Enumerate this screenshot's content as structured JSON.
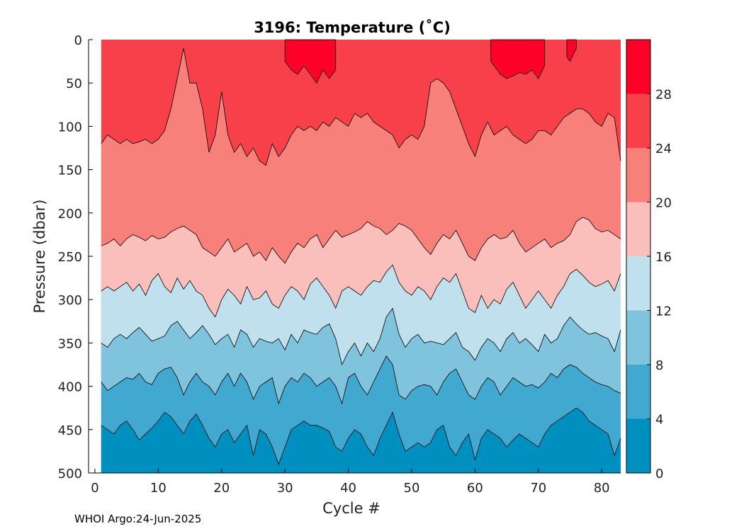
{
  "chart_data": {
    "type": "heatmap",
    "subtype": "filled-contour",
    "title": "3196:  Temperature (˚C)",
    "xlabel": "Cycle #",
    "ylabel": "Pressure (dbar)",
    "xlim": [
      -1,
      83
    ],
    "ylim": [
      500,
      0
    ],
    "y_axis_reversed": true,
    "xticks": [
      0,
      10,
      20,
      30,
      40,
      50,
      60,
      70,
      80
    ],
    "yticks": [
      0,
      50,
      100,
      150,
      200,
      250,
      300,
      350,
      400,
      450,
      500
    ],
    "colorbar": {
      "ticks": [
        0,
        4,
        8,
        12,
        16,
        20,
        24,
        28
      ],
      "range": [
        0,
        32
      ],
      "levels": [
        {
          "min": 0,
          "max": 4,
          "color": "#0090bf"
        },
        {
          "min": 4,
          "max": 8,
          "color": "#41a9cf"
        },
        {
          "min": 8,
          "max": 12,
          "color": "#80c3dd"
        },
        {
          "min": 12,
          "max": 16,
          "color": "#c0e0ed"
        },
        {
          "min": 16,
          "max": 20,
          "color": "#fbbfbb"
        },
        {
          "min": 20,
          "max": 24,
          "color": "#f7807b"
        },
        {
          "min": 24,
          "max": 28,
          "color": "#f7404a"
        },
        {
          "min": 28,
          "max": 32,
          "color": "#fe0128"
        }
      ]
    },
    "contours": [
      {
        "level": 28,
        "segments": [
          {
            "x": [
              30.0,
              31.0,
              32.0,
              33.0,
              34.0,
              35.0,
              36.0,
              37.0,
              38.0
            ],
            "depth": [
              25,
              35,
              40,
              30,
              40,
              50,
              35,
              45,
              35
            ]
          },
          {
            "x": [
              62.5,
              64.0,
              65.0,
              66.0,
              67.0,
              68.0,
              69.0,
              70.0,
              71.0
            ],
            "depth": [
              25,
              40,
              45,
              42,
              38,
              40,
              35,
              45,
              30
            ]
          },
          {
            "x": [
              74.5,
              75.0,
              76.0
            ],
            "depth": [
              20,
              25,
              10
            ]
          }
        ]
      },
      {
        "level": 24,
        "x": [
          1,
          2,
          3,
          4,
          5,
          6,
          7,
          8,
          9,
          10,
          11,
          12,
          13,
          14,
          15,
          16,
          17,
          18,
          19,
          20,
          21,
          22,
          23,
          24,
          25,
          26,
          27,
          28,
          29,
          30,
          31,
          32,
          33,
          34,
          35,
          36,
          37,
          38,
          39,
          40,
          41,
          42,
          43,
          44,
          45,
          46,
          47,
          48,
          49,
          50,
          51,
          52,
          53,
          54,
          55,
          56,
          57,
          58,
          59,
          60,
          61,
          62,
          63,
          64,
          65,
          66,
          67,
          68,
          69,
          70,
          71,
          72,
          73,
          74,
          75,
          76,
          77,
          78,
          79,
          80,
          81,
          82,
          83
        ],
        "depth": [
          120,
          110,
          115,
          120,
          115,
          120,
          118,
          115,
          120,
          115,
          105,
          80,
          45,
          10,
          50,
          50,
          80,
          130,
          110,
          60,
          110,
          130,
          120,
          135,
          125,
          140,
          145,
          120,
          135,
          125,
          110,
          100,
          105,
          100,
          105,
          95,
          100,
          90,
          95,
          100,
          85,
          90,
          85,
          95,
          100,
          105,
          110,
          125,
          115,
          110,
          115,
          100,
          50,
          45,
          50,
          60,
          80,
          100,
          120,
          135,
          110,
          95,
          110,
          105,
          100,
          110,
          115,
          120,
          115,
          105,
          105,
          110,
          100,
          90,
          85,
          80,
          80,
          85,
          95,
          100,
          85,
          90,
          140
        ]
      },
      {
        "level": 20,
        "x": [
          1,
          2,
          3,
          4,
          5,
          6,
          7,
          8,
          9,
          10,
          11,
          12,
          13,
          14,
          15,
          16,
          17,
          18,
          19,
          20,
          21,
          22,
          23,
          24,
          25,
          26,
          27,
          28,
          29,
          30,
          31,
          32,
          33,
          34,
          35,
          36,
          37,
          38,
          39,
          40,
          41,
          42,
          43,
          44,
          45,
          46,
          47,
          48,
          49,
          50,
          51,
          52,
          53,
          54,
          55,
          56,
          57,
          58,
          59,
          60,
          61,
          62,
          63,
          64,
          65,
          66,
          67,
          68,
          69,
          70,
          71,
          72,
          73,
          74,
          75,
          76,
          77,
          78,
          79,
          80,
          81,
          82,
          83
        ],
        "depth": [
          238,
          235,
          230,
          238,
          230,
          225,
          228,
          232,
          226,
          230,
          228,
          222,
          218,
          215,
          220,
          225,
          240,
          245,
          250,
          240,
          230,
          245,
          240,
          235,
          250,
          245,
          255,
          240,
          250,
          258,
          245,
          235,
          240,
          230,
          225,
          240,
          230,
          220,
          228,
          225,
          222,
          218,
          210,
          215,
          218,
          225,
          220,
          212,
          215,
          220,
          230,
          240,
          248,
          235,
          225,
          230,
          220,
          235,
          250,
          255,
          240,
          230,
          225,
          230,
          228,
          220,
          235,
          245,
          240,
          235,
          230,
          240,
          235,
          232,
          225,
          210,
          205,
          208,
          218,
          222,
          220,
          225,
          230
        ]
      },
      {
        "level": 16,
        "x": [
          1,
          2,
          3,
          4,
          5,
          6,
          7,
          8,
          9,
          10,
          11,
          12,
          13,
          14,
          15,
          16,
          17,
          18,
          19,
          20,
          21,
          22,
          23,
          24,
          25,
          26,
          27,
          28,
          29,
          30,
          31,
          32,
          33,
          34,
          35,
          36,
          37,
          38,
          39,
          40,
          41,
          42,
          43,
          44,
          45,
          46,
          47,
          48,
          49,
          50,
          51,
          52,
          53,
          54,
          55,
          56,
          57,
          58,
          59,
          60,
          61,
          62,
          63,
          64,
          65,
          66,
          67,
          68,
          69,
          70,
          71,
          72,
          73,
          74,
          75,
          76,
          77,
          78,
          79,
          80,
          81,
          82,
          83
        ],
        "depth": [
          290,
          285,
          290,
          285,
          280,
          290,
          282,
          295,
          278,
          270,
          285,
          292,
          275,
          288,
          278,
          290,
          295,
          310,
          320,
          300,
          288,
          295,
          305,
          285,
          300,
          298,
          290,
          305,
          310,
          295,
          285,
          290,
          300,
          282,
          275,
          285,
          295,
          310,
          290,
          285,
          290,
          295,
          285,
          278,
          280,
          268,
          260,
          280,
          290,
          295,
          285,
          290,
          300,
          285,
          275,
          280,
          270,
          290,
          310,
          315,
          295,
          310,
          300,
          305,
          288,
          280,
          295,
          310,
          300,
          290,
          300,
          310,
          295,
          285,
          270,
          265,
          272,
          280,
          285,
          282,
          278,
          290,
          270
        ]
      },
      {
        "level": 12,
        "x": [
          1,
          2,
          3,
          4,
          5,
          6,
          7,
          8,
          9,
          10,
          11,
          12,
          13,
          14,
          15,
          16,
          17,
          18,
          19,
          20,
          21,
          22,
          23,
          24,
          25,
          26,
          27,
          28,
          29,
          30,
          31,
          32,
          33,
          34,
          35,
          36,
          37,
          38,
          39,
          40,
          41,
          42,
          43,
          44,
          45,
          46,
          47,
          48,
          49,
          50,
          51,
          52,
          53,
          54,
          55,
          56,
          57,
          58,
          59,
          60,
          61,
          62,
          63,
          64,
          65,
          66,
          67,
          68,
          69,
          70,
          71,
          72,
          73,
          74,
          75,
          76,
          77,
          78,
          79,
          80,
          81,
          82,
          83
        ],
        "depth": [
          350,
          355,
          345,
          340,
          345,
          338,
          332,
          340,
          348,
          345,
          342,
          330,
          325,
          335,
          345,
          338,
          330,
          340,
          352,
          345,
          340,
          355,
          335,
          340,
          355,
          345,
          348,
          350,
          345,
          358,
          340,
          350,
          335,
          338,
          340,
          332,
          328,
          345,
          375,
          360,
          350,
          365,
          350,
          360,
          345,
          320,
          310,
          340,
          355,
          345,
          340,
          350,
          348,
          350,
          352,
          345,
          338,
          355,
          360,
          370,
          355,
          345,
          350,
          360,
          345,
          338,
          350,
          345,
          352,
          360,
          340,
          350,
          345,
          330,
          320,
          328,
          335,
          340,
          338,
          342,
          345,
          360,
          335
        ]
      },
      {
        "level": 8,
        "x": [
          1,
          2,
          3,
          4,
          5,
          6,
          7,
          8,
          9,
          10,
          11,
          12,
          13,
          14,
          15,
          16,
          17,
          18,
          19,
          20,
          21,
          22,
          23,
          24,
          25,
          26,
          27,
          28,
          29,
          30,
          31,
          32,
          33,
          34,
          35,
          36,
          37,
          38,
          39,
          40,
          41,
          42,
          43,
          44,
          45,
          46,
          47,
          48,
          49,
          50,
          51,
          52,
          53,
          54,
          55,
          56,
          57,
          58,
          59,
          60,
          61,
          62,
          63,
          64,
          65,
          66,
          67,
          68,
          69,
          70,
          71,
          72,
          73,
          74,
          75,
          76,
          77,
          78,
          79,
          80,
          81,
          82,
          83
        ],
        "depth": [
          395,
          405,
          400,
          395,
          390,
          392,
          385,
          395,
          398,
          385,
          380,
          378,
          390,
          410,
          395,
          385,
          395,
          400,
          410,
          395,
          385,
          400,
          385,
          395,
          415,
          400,
          395,
          390,
          420,
          400,
          390,
          395,
          385,
          390,
          400,
          395,
          390,
          400,
          420,
          390,
          385,
          400,
          410,
          395,
          380,
          365,
          375,
          410,
          415,
          405,
          400,
          398,
          400,
          410,
          395,
          385,
          380,
          395,
          410,
          415,
          400,
          390,
          395,
          410,
          400,
          390,
          395,
          400,
          398,
          402,
          395,
          385,
          390,
          380,
          375,
          378,
          385,
          390,
          395,
          398,
          400,
          405,
          408
        ]
      },
      {
        "level": 4,
        "x": [
          1,
          2,
          3,
          4,
          5,
          6,
          7,
          8,
          9,
          10,
          11,
          12,
          13,
          14,
          15,
          16,
          17,
          18,
          19,
          20,
          21,
          22,
          23,
          24,
          25,
          26,
          27,
          28,
          29,
          30,
          31,
          32,
          33,
          34,
          35,
          36,
          37,
          38,
          39,
          40,
          41,
          42,
          43,
          44,
          45,
          46,
          47,
          48,
          49,
          50,
          51,
          52,
          53,
          54,
          55,
          56,
          57,
          58,
          59,
          60,
          61,
          62,
          63,
          64,
          65,
          66,
          67,
          68,
          69,
          70,
          71,
          72,
          73,
          74,
          75,
          76,
          77,
          78,
          79,
          80,
          81,
          82,
          83
        ],
        "depth": [
          445,
          450,
          455,
          445,
          440,
          450,
          462,
          455,
          448,
          440,
          430,
          435,
          445,
          455,
          440,
          432,
          445,
          460,
          470,
          455,
          450,
          465,
          455,
          445,
          480,
          450,
          455,
          470,
          490,
          470,
          450,
          445,
          440,
          445,
          445,
          448,
          452,
          470,
          475,
          460,
          450,
          455,
          470,
          480,
          460,
          445,
          430,
          455,
          475,
          470,
          465,
          470,
          465,
          450,
          445,
          470,
          480,
          465,
          455,
          485,
          460,
          450,
          455,
          460,
          470,
          462,
          455,
          460,
          465,
          470,
          455,
          445,
          440,
          435,
          430,
          425,
          430,
          440,
          445,
          450,
          455,
          480,
          460
        ]
      }
    ]
  },
  "footer": {
    "text": "WHOI Argo:24-Jun-2025"
  }
}
